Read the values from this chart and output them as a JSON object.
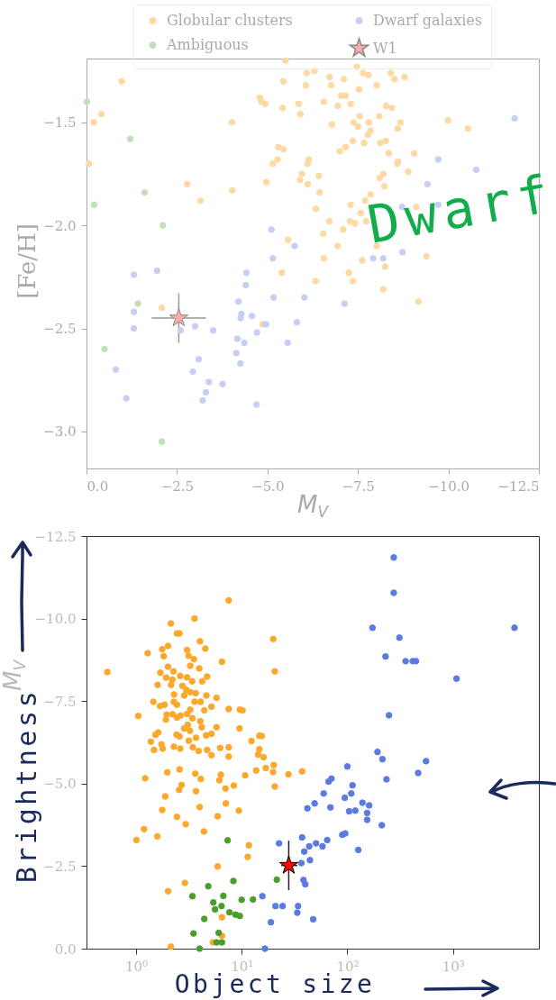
{
  "chart_data": [
    {
      "type": "scatter",
      "xlabel": "M$_{V}$",
      "ylabel": "[Fe/H]",
      "marker": "circle",
      "legend": "top",
      "annotations": [
        "Dwarf"
      ],
      "xlim": [
        0,
        -12.5
      ],
      "xticks": [
        {
          "value": 0,
          "label": "0.0"
        },
        {
          "value": -2.5,
          "label": "−2.5"
        },
        {
          "value": -5,
          "label": "−5.0"
        },
        {
          "value": -7.5,
          "label": "−7.5"
        },
        {
          "value": -10,
          "label": "−10.0"
        },
        {
          "value": -12.5,
          "label": "−12.5"
        }
      ],
      "ylim": [
        -3.18,
        -1.19
      ],
      "yticks": [
        {
          "value": -3,
          "label": "−3.0"
        },
        {
          "value": -2.5,
          "label": "−2.5"
        },
        {
          "value": -2,
          "label": "−2.0"
        },
        {
          "value": -1.5,
          "label": "−1.5"
        }
      ],
      "series": [
        {
          "name": "Globular clusters",
          "color": "#fdd9a3",
          "x": [
            -0.97,
            -0.41,
            -0.2,
            -0.07,
            -2.78,
            -3.15,
            -4.02,
            -4.03,
            -4.79,
            -4.84,
            -4.94,
            -5.44,
            -5.5,
            -5.42,
            -5.86,
            -5.91,
            -6.06,
            -6.08,
            -6.3,
            -6.72,
            -6.76,
            -7.11,
            -6.56,
            -6.78,
            -6.94,
            -7.04,
            -7.16,
            -7.3,
            -7.47,
            -7.53,
            -7.64,
            -7.79,
            -8.02,
            -8.41,
            -8.51,
            -8.79,
            -7.55,
            -7.38,
            -7.5,
            -7.8,
            -7.85,
            -7.77,
            -7.67,
            -7.36,
            -7.16,
            -7.0,
            -8.09,
            -8.28,
            -8.44,
            -8.68,
            -8.6,
            -8.12,
            -8.27,
            -8.35,
            -8.61,
            -8.59,
            -9.05,
            -8.89,
            -9.99,
            -10.54,
            -8.2,
            -8.1,
            -8.23,
            -7.85,
            -7.7,
            -7.58,
            -7.3,
            -7.28,
            -7.42,
            -7.73,
            -7.09,
            -6.71,
            -6.54,
            -6.94,
            -6.34,
            -6.44,
            -6.42,
            -6.11,
            -5.9,
            -5.95,
            -6.11,
            -6.14,
            -5.3,
            -5.44,
            -5.28,
            -5.15,
            -4.97,
            -9.11,
            -8.02,
            -7.62,
            -7.25,
            -6.56,
            -8.25,
            -9.39,
            -5.57,
            -5.4,
            -6.33,
            -7.36,
            -8.2,
            -9.17,
            -2.08,
            -4.87
          ],
          "values": [
            -1.3,
            -1.46,
            -1.5,
            -1.7,
            -1.8,
            -1.88,
            -1.5,
            -1.83,
            -1.38,
            -1.4,
            -1.41,
            -1.3,
            -1.2,
            -1.43,
            -1.41,
            -1.46,
            -1.32,
            -1.26,
            -1.25,
            -1.28,
            -1.32,
            -1.29,
            -1.4,
            -1.51,
            -1.42,
            -1.37,
            -1.37,
            -1.41,
            -1.23,
            -1.34,
            -1.26,
            -1.27,
            -1.32,
            -1.26,
            -1.29,
            -1.28,
            -1.47,
            -1.5,
            -1.52,
            -1.5,
            -1.54,
            -1.56,
            -1.6,
            -1.59,
            -1.62,
            -1.64,
            -1.47,
            -1.42,
            -1.43,
            -1.5,
            -1.53,
            -1.6,
            -1.59,
            -1.65,
            -1.69,
            -1.7,
            -1.65,
            -1.74,
            -1.49,
            -1.53,
            -1.75,
            -1.77,
            -1.81,
            -1.85,
            -1.88,
            -1.94,
            -1.9,
            -1.98,
            -1.99,
            -1.98,
            -2.02,
            -1.98,
            -2.04,
            -2.1,
            -1.92,
            -1.84,
            -1.76,
            -1.8,
            -1.78,
            -1.75,
            -1.7,
            -1.68,
            -1.62,
            -1.63,
            -1.68,
            -1.7,
            -1.79,
            -1.91,
            -2.1,
            -2.17,
            -2.23,
            -2.16,
            -2.2,
            -2.15,
            -2.07,
            -2.23,
            -2.27,
            -2.27,
            -2.31,
            -2.37,
            -2.4,
            -2.48
          ]
        },
        {
          "name": "Ambiguous",
          "color": "#c3e0ba",
          "x": [
            -0.01,
            -1.21,
            -1.61,
            -0.21,
            -2.11,
            -1.42,
            -0.5,
            -2.08
          ],
          "values": [
            -1.4,
            -1.58,
            -1.84,
            -1.9,
            -2.0,
            -2.38,
            -2.6,
            -3.05
          ]
        },
        {
          "name": "Dwarf galaxies",
          "color": "#c6d0f5",
          "x": [
            -11.83,
            -9.72,
            -10.77,
            -9.42,
            -9.72,
            -8.72,
            -5.11,
            -5.75,
            -5.15,
            -7.92,
            -8.73,
            -1.95,
            -4.42,
            -1.31,
            -4.4,
            -4.2,
            -5.17,
            -6.02,
            -7.13,
            -1.31,
            -1.31,
            -4.28,
            -4.26,
            -4.57,
            -2.6,
            -3.0,
            -3.5,
            -4.96,
            -4.71,
            -5.81,
            -4.17,
            -4.36,
            -5.56,
            -4.14,
            -3.1,
            -4.25,
            -0.81,
            -2.94,
            -3.38,
            -3.76,
            -3.3,
            -1.1,
            -3.21,
            -4.7,
            -8.2
          ],
          "values": [
            -1.48,
            -1.68,
            -1.73,
            -1.8,
            -1.9,
            -1.91,
            -2.02,
            -2.1,
            -2.16,
            -2.16,
            -2.13,
            -2.22,
            -2.23,
            -2.24,
            -2.29,
            -2.37,
            -2.35,
            -2.35,
            -2.38,
            -2.42,
            -2.5,
            -2.43,
            -2.45,
            -2.44,
            -2.51,
            -2.49,
            -2.51,
            -2.48,
            -2.52,
            -2.47,
            -2.55,
            -2.57,
            -2.57,
            -2.62,
            -2.65,
            -2.67,
            -2.7,
            -2.71,
            -2.76,
            -2.77,
            -2.81,
            -2.84,
            -2.85,
            -2.87,
            -2.16
          ]
        },
        {
          "name": "W1",
          "color": "#ffaaaa",
          "marker": "star",
          "x": [
            -2.55
          ],
          "values": [
            -2.45
          ],
          "errors": [
            0.12
          ],
          "xerrors": [
            0.75
          ]
        }
      ]
    },
    {
      "type": "scatter",
      "ylabel": "M$_{V}$",
      "marker": "circle",
      "log": "x",
      "annotations": [
        "Brightness",
        "Object size"
      ],
      "xlim": [
        0.34,
        6500
      ],
      "xticks": [
        {
          "value": 1,
          "label": "10⁰"
        },
        {
          "value": 10,
          "label": "10¹"
        },
        {
          "value": 100,
          "label": "10²"
        },
        {
          "value": 1000,
          "label": "10³"
        }
      ],
      "ylim": [
        0,
        -12.5
      ],
      "yticks": [
        {
          "value": 0,
          "label": "0.0"
        },
        {
          "value": -2.5,
          "label": "−2.5"
        },
        {
          "value": -5,
          "label": "−5.0"
        },
        {
          "value": -7.5,
          "label": "−7.5"
        },
        {
          "value": -10,
          "label": "−10.0"
        },
        {
          "value": -12.5,
          "label": "−12.5"
        }
      ],
      "series": [
        {
          "color": "#fba82c",
          "x": [
            0.535,
            7.54,
            3.58,
            2.14,
            2.44,
            2.58,
            4.03,
            4.53,
            2.01,
            1.77,
            1.29,
            1.83,
            3.04,
            3.14,
            3.53,
            19.9,
            20.6,
            6.5,
            2.01,
            2.26,
            1.7,
            3.26,
            3.97,
            1.93,
            2.21,
            2.62,
            3.04,
            3.4,
            4.23,
            4.71,
            1.6,
            2.15,
            2.75,
            2.99,
            3.26,
            3.67,
            2.29,
            2.86,
            1.46,
            1.69,
            1.86,
            2.28,
            2.44,
            3.58,
            4.09,
            4.64,
            5.78,
            5.18,
            3.26,
            4.43,
            7.54,
            9.61,
            10.2,
            1.05,
            1.95,
            2.22,
            2.64,
            3.04,
            1.92,
            2.44,
            3.42,
            4.06,
            3.09,
            4.19,
            5.78,
            9.54,
            2.86,
            3.24,
            1.62,
            1.53,
            2.42,
            2.58,
            3.7,
            4.61,
            5.18,
            3.16,
            14.7,
            15.5,
            12.4,
            1.38,
            1.74,
            1.48,
            1.79,
            2.28,
            2.62,
            3.45,
            3.91,
            4.71,
            6.25,
            7.54,
            7.54,
            5.18,
            14.7,
            14.3,
            16.1,
            1.98,
            2.58,
            3.64,
            4.1,
            1.22,
            6.35,
            6.15,
            2.7,
            2.56,
            8.42,
            7.03,
            3.7,
            10.8,
            13.7,
            16.9,
            19.8,
            20.1,
            20.6,
            27.7,
            37.3,
            1.89,
            1.77,
            4.0,
            7.09,
            9.4,
            2.44,
            5.92,
            2.95,
            4.39,
            1.19,
            1.01,
            1.59,
            11.7,
            11.4,
            5.92,
            2.9,
            2.01,
            6.5,
            6.5,
            5.35,
            2.14
          ],
          "values": [
            -8.38,
            -10.55,
            -10.0,
            -9.85,
            -9.55,
            -9.55,
            -9.31,
            -9.09,
            -9.17,
            -9.07,
            -8.95,
            -8.86,
            -9.05,
            -8.87,
            -8.77,
            -9.38,
            -8.4,
            -8.69,
            -8.54,
            -8.4,
            -8.36,
            -8.57,
            -8.49,
            -8.21,
            -8.15,
            -8.26,
            -8.22,
            -8.1,
            -8.1,
            -8.24,
            -7.99,
            -7.99,
            -7.96,
            -7.84,
            -7.77,
            -7.74,
            -7.7,
            -7.67,
            -7.48,
            -7.35,
            -7.39,
            -7.48,
            -7.39,
            -7.48,
            -7.48,
            -7.67,
            -7.6,
            -7.33,
            -7.24,
            -7.22,
            -7.26,
            -7.24,
            -7.22,
            -7.05,
            -7.09,
            -7.1,
            -7.06,
            -7.11,
            -6.94,
            -7.0,
            -6.98,
            -6.89,
            -6.78,
            -6.71,
            -6.71,
            -6.67,
            -6.67,
            -6.6,
            -6.55,
            -6.48,
            -6.48,
            -6.43,
            -6.39,
            -6.46,
            -6.51,
            -6.3,
            -6.45,
            -6.44,
            -6.29,
            -6.27,
            -6.19,
            -6.02,
            -6.06,
            -6.12,
            -6.06,
            -6.1,
            -5.99,
            -6.02,
            -6.08,
            -6.1,
            -5.82,
            -5.86,
            -6.04,
            -5.88,
            -5.8,
            -5.34,
            -5.43,
            -5.3,
            -5.14,
            -5.16,
            -5.27,
            -5.1,
            -4.96,
            -4.81,
            -4.94,
            -4.85,
            -4.77,
            -5.25,
            -5.4,
            -5.47,
            -5.35,
            -5.56,
            -4.91,
            -5.28,
            -5.37,
            -4.61,
            -4.2,
            -4.29,
            -4.4,
            -4.18,
            -3.99,
            -4.01,
            -3.77,
            -3.55,
            -3.62,
            -3.29,
            -3.4,
            -3.13,
            -2.78,
            -2.49,
            -1.99,
            -1.74,
            -0.95,
            -0.39,
            -0.19,
            -0.06
          ]
        },
        {
          "color": "#4a9e2e",
          "x": [
            7.37,
            4.83,
            8.35,
            21.5,
            3.42,
            6.71,
            5.39,
            6.45,
            5.6,
            10,
            12.8,
            7.66,
            8.75,
            9.6,
            4.43,
            3.5,
            6.06,
            5.78,
            6.5,
            4.0
          ],
          "values": [
            -3.28,
            -1.89,
            -2.05,
            -2.09,
            -1.59,
            -1.6,
            -1.4,
            -1.29,
            -1.19,
            -1.48,
            -1.49,
            -1.1,
            -1.03,
            -0.99,
            -0.9,
            -0.46,
            -0.48,
            -0.19,
            -0.19,
            0
          ]
        },
        {
          "color": "#5b7be0",
          "x": [
            275,
            275,
            173,
            311,
            230,
            356,
            416,
            446,
            3820,
            1080,
            248,
            193,
            215,
            556,
            100,
            468,
            235,
            66.5,
            70.8,
            112,
            59.7,
            109,
            94.6,
            49,
            139,
            161,
            41.9,
            69.2,
            104,
            119,
            154,
            154,
            212,
            37.3,
            89.6,
            95.4,
            64.5,
            50.6,
            58.2,
            22.6,
            43.6,
            39.1,
            127,
            44.3,
            36.7,
            38.5,
            40,
            15.7,
            20.9,
            24.4,
            34.2,
            33.6,
            47.5,
            18.9,
            16.6
          ],
          "values": [
            -11.85,
            -10.78,
            -9.72,
            -9.42,
            -8.85,
            -8.71,
            -8.71,
            -8.71,
            -9.72,
            -8.18,
            -7.07,
            -5.96,
            -5.74,
            -5.68,
            -5.52,
            -5.32,
            -5.13,
            -5.06,
            -5.15,
            -4.95,
            -4.7,
            -4.7,
            -4.57,
            -4.4,
            -4.42,
            -4.34,
            -4.25,
            -4.28,
            -4.16,
            -4.18,
            -4.11,
            -3.9,
            -3.74,
            -3.37,
            -3.45,
            -3.49,
            -3.29,
            -3.19,
            -3.1,
            -3.19,
            -3.1,
            -2.94,
            -2.99,
            -2.68,
            -2.59,
            -2.08,
            -1.95,
            -1.59,
            -1.29,
            -1.29,
            -1.29,
            -1.09,
            -0.89,
            -0.8,
            0
          ]
        },
        {
          "color": "#ff0000",
          "marker": "star",
          "x": [
            27.9
          ],
          "values": [
            -2.52
          ],
          "errors": [
            0.75
          ],
          "xerrors": [
            [
              23.7,
              33.6
            ]
          ]
        }
      ]
    }
  ]
}
